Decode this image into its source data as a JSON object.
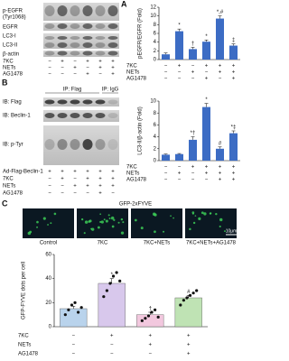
{
  "panel_letters": [
    "A",
    "B",
    "C"
  ],
  "blot_a": {
    "rows": [
      "p-EGFR",
      "(Tyr1068)",
      "EGFR",
      "LC3-I",
      "LC3-II",
      "β-actin"
    ],
    "conditions": [
      {
        "name": "7KC",
        "signs": [
          "−",
          "+",
          "−",
          "+",
          "+",
          "+"
        ]
      },
      {
        "name": "NETs",
        "signs": [
          "−",
          "−",
          "+",
          "−",
          "+",
          "+"
        ]
      },
      {
        "name": "AG1478",
        "signs": [
          "−",
          "−",
          "−",
          "+",
          "−",
          "+"
        ]
      }
    ]
  },
  "blot_b": {
    "ip": [
      "IP: Flag",
      "IP: IgG"
    ],
    "rows": [
      "IB: Flag",
      "IB: Beclin-1",
      "IB: p-Tyr"
    ],
    "conditions": [
      {
        "name": "Ad-Flag-Beclin-1",
        "signs": [
          "+",
          "+",
          "+",
          "+",
          "+",
          "+"
        ]
      },
      {
        "name": "7KC",
        "signs": [
          "−",
          "+",
          "−",
          "+",
          "+",
          "+"
        ]
      },
      {
        "name": "NETs",
        "signs": [
          "−",
          "−",
          "+",
          "+",
          "+",
          "+"
        ]
      },
      {
        "name": "AG1478",
        "signs": [
          "−",
          "−",
          "−",
          "−",
          "+",
          "−"
        ]
      }
    ]
  },
  "images_c": {
    "title": "GFP-2xFYVE",
    "scale": "10μm",
    "labels": [
      "Control",
      "7KC",
      "7KC+NETs",
      "7KC+NETs+AG1478"
    ]
  },
  "chart_data": [
    {
      "type": "bar",
      "y_label": "pEGFR/EGFR (Fold)",
      "values": [
        1.2,
        6.5,
        2.4,
        4.1,
        9.4,
        3.2
      ],
      "errors": [
        0.3,
        0.5,
        0.4,
        0.4,
        0.6,
        0.4
      ],
      "annotations": [
        null,
        "*",
        "†",
        "*",
        "*,#",
        "‡"
      ],
      "color": "#3c6cc4",
      "ylim": [
        0,
        12
      ],
      "yticks": [
        0,
        2,
        4,
        6,
        8,
        10,
        12
      ],
      "conditions": [
        {
          "name": "7KC",
          "signs": [
            "−",
            "+",
            "−",
            "+",
            "+",
            "+"
          ]
        },
        {
          "name": "NETs",
          "signs": [
            "−",
            "−",
            "+",
            "−",
            "+",
            "+"
          ]
        },
        {
          "name": "AG1478",
          "signs": [
            "−",
            "−",
            "−",
            "+",
            "−",
            "+"
          ]
        }
      ]
    },
    {
      "type": "bar",
      "y_label": "LC3-II/β-actin (Fold)",
      "values": [
        1.0,
        1.1,
        3.5,
        9.0,
        2.0,
        4.6
      ],
      "errors": [
        0.1,
        0.1,
        0.5,
        0.6,
        0.3,
        0.4
      ],
      "annotations": [
        null,
        null,
        "*†",
        "*",
        "#",
        "*‡"
      ],
      "color": "#3c6cc4",
      "ylim": [
        0,
        10
      ],
      "yticks": [
        0,
        2,
        4,
        6,
        8,
        10
      ],
      "conditions": [
        {
          "name": "7KC",
          "signs": [
            "−",
            "−",
            "+",
            "+",
            "+",
            "+"
          ]
        },
        {
          "name": "NETs",
          "signs": [
            "−",
            "+",
            "−",
            "+",
            "+",
            "+"
          ]
        },
        {
          "name": "AG1478",
          "signs": [
            "−",
            "−",
            "−",
            "−",
            "+",
            "+"
          ]
        }
      ]
    },
    {
      "type": "bar",
      "y_label": "GFP-FYVE dots per cell",
      "values": [
        15,
        36,
        10,
        24
      ],
      "errors": [
        2,
        4,
        2,
        2
      ],
      "annotations": [
        null,
        "*",
        "†",
        "#"
      ],
      "colors": [
        "#b9d3ec",
        "#d8c8ec",
        "#f2c8de",
        "#bfe3b4"
      ],
      "ylim": [
        0,
        60
      ],
      "yticks": [
        0,
        20,
        40,
        60
      ],
      "points": [
        [
          10,
          14,
          18,
          20,
          12,
          16
        ],
        [
          25,
          30,
          36,
          42,
          45,
          38
        ],
        [
          5,
          7,
          9,
          12,
          14,
          8
        ],
        [
          18,
          22,
          24,
          26,
          28,
          30
        ]
      ],
      "conditions": [
        {
          "name": "7KC",
          "signs": [
            "−",
            "+",
            "+",
            "+"
          ]
        },
        {
          "name": "NETs",
          "signs": [
            "−",
            "−",
            "+",
            "+"
          ]
        },
        {
          "name": "AG1478",
          "signs": [
            "−",
            "−",
            "−",
            "+"
          ]
        }
      ]
    }
  ]
}
